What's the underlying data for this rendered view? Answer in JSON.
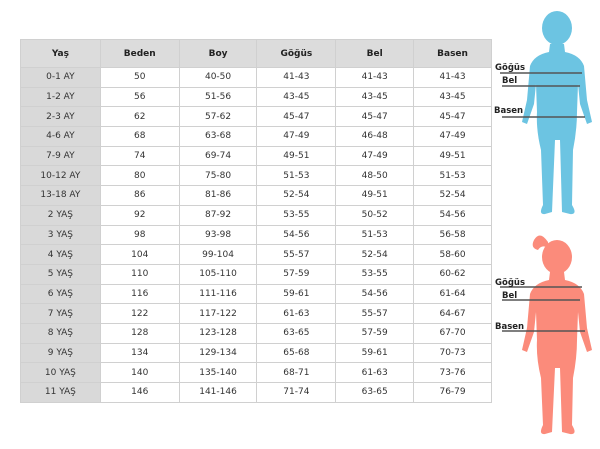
{
  "table": {
    "headers": [
      "Yaş",
      "Beden",
      "Boy",
      "Göğüs",
      "Bel",
      "Basen"
    ],
    "rows": [
      [
        "0-1 AY",
        "50",
        "40-50",
        "41-43",
        "41-43",
        "41-43"
      ],
      [
        "1-2 AY",
        "56",
        "51-56",
        "43-45",
        "43-45",
        "43-45"
      ],
      [
        "2-3 AY",
        "62",
        "57-62",
        "45-47",
        "45-47",
        "45-47"
      ],
      [
        "4-6 AY",
        "68",
        "63-68",
        "47-49",
        "46-48",
        "47-49"
      ],
      [
        "7-9 AY",
        "74",
        "69-74",
        "49-51",
        "47-49",
        "49-51"
      ],
      [
        "10-12 AY",
        "80",
        "75-80",
        "51-53",
        "48-50",
        "51-53"
      ],
      [
        "13-18 AY",
        "86",
        "81-86",
        "52-54",
        "49-51",
        "52-54"
      ],
      [
        "2 YAŞ",
        "92",
        "87-92",
        "53-55",
        "50-52",
        "54-56"
      ],
      [
        "3 YAŞ",
        "98",
        "93-98",
        "54-56",
        "51-53",
        "56-58"
      ],
      [
        "4 YAŞ",
        "104",
        "99-104",
        "55-57",
        "52-54",
        "58-60"
      ],
      [
        "5 YAŞ",
        "110",
        "105-110",
        "57-59",
        "53-55",
        "60-62"
      ],
      [
        "6 YAŞ",
        "116",
        "111-116",
        "59-61",
        "54-56",
        "61-64"
      ],
      [
        "7 YAŞ",
        "122",
        "117-122",
        "61-63",
        "55-57",
        "64-67"
      ],
      [
        "8 YAŞ",
        "128",
        "123-128",
        "63-65",
        "57-59",
        "67-70"
      ],
      [
        "9 YAŞ",
        "134",
        "129-134",
        "65-68",
        "59-61",
        "70-73"
      ],
      [
        "10 YAŞ",
        "140",
        "135-140",
        "68-71",
        "61-63",
        "73-76"
      ],
      [
        "11 YAŞ",
        "146",
        "141-146",
        "71-74",
        "63-65",
        "76-79"
      ]
    ]
  },
  "figures": {
    "boy": {
      "color": "#6cc4e2",
      "labels": [
        "Göğüs",
        "Bel",
        "Basen"
      ]
    },
    "girl": {
      "color": "#fb8b7b",
      "labels": [
        "Göğüs",
        "Bel",
        "Basen"
      ]
    }
  }
}
